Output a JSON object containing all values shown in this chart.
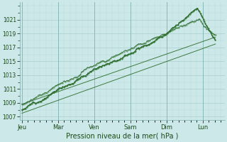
{
  "xlabel": "Pression niveau de la mer( hPa )",
  "ylim": [
    1006.5,
    1023.5
  ],
  "yticks": [
    1007,
    1009,
    1011,
    1013,
    1015,
    1017,
    1019,
    1021
  ],
  "day_labels": [
    "Jeu",
    "Mar",
    "Ven",
    "Sam",
    "Dim",
    "Lun"
  ],
  "day_positions": [
    0,
    1,
    2,
    3,
    4,
    5
  ],
  "xlim": [
    -0.05,
    5.6
  ],
  "bg_color": "#cce8e8",
  "grid_color_major": "#aacece",
  "grid_color_minor": "#bcdada",
  "line_color": "#2d6e2d",
  "n_points": 400
}
